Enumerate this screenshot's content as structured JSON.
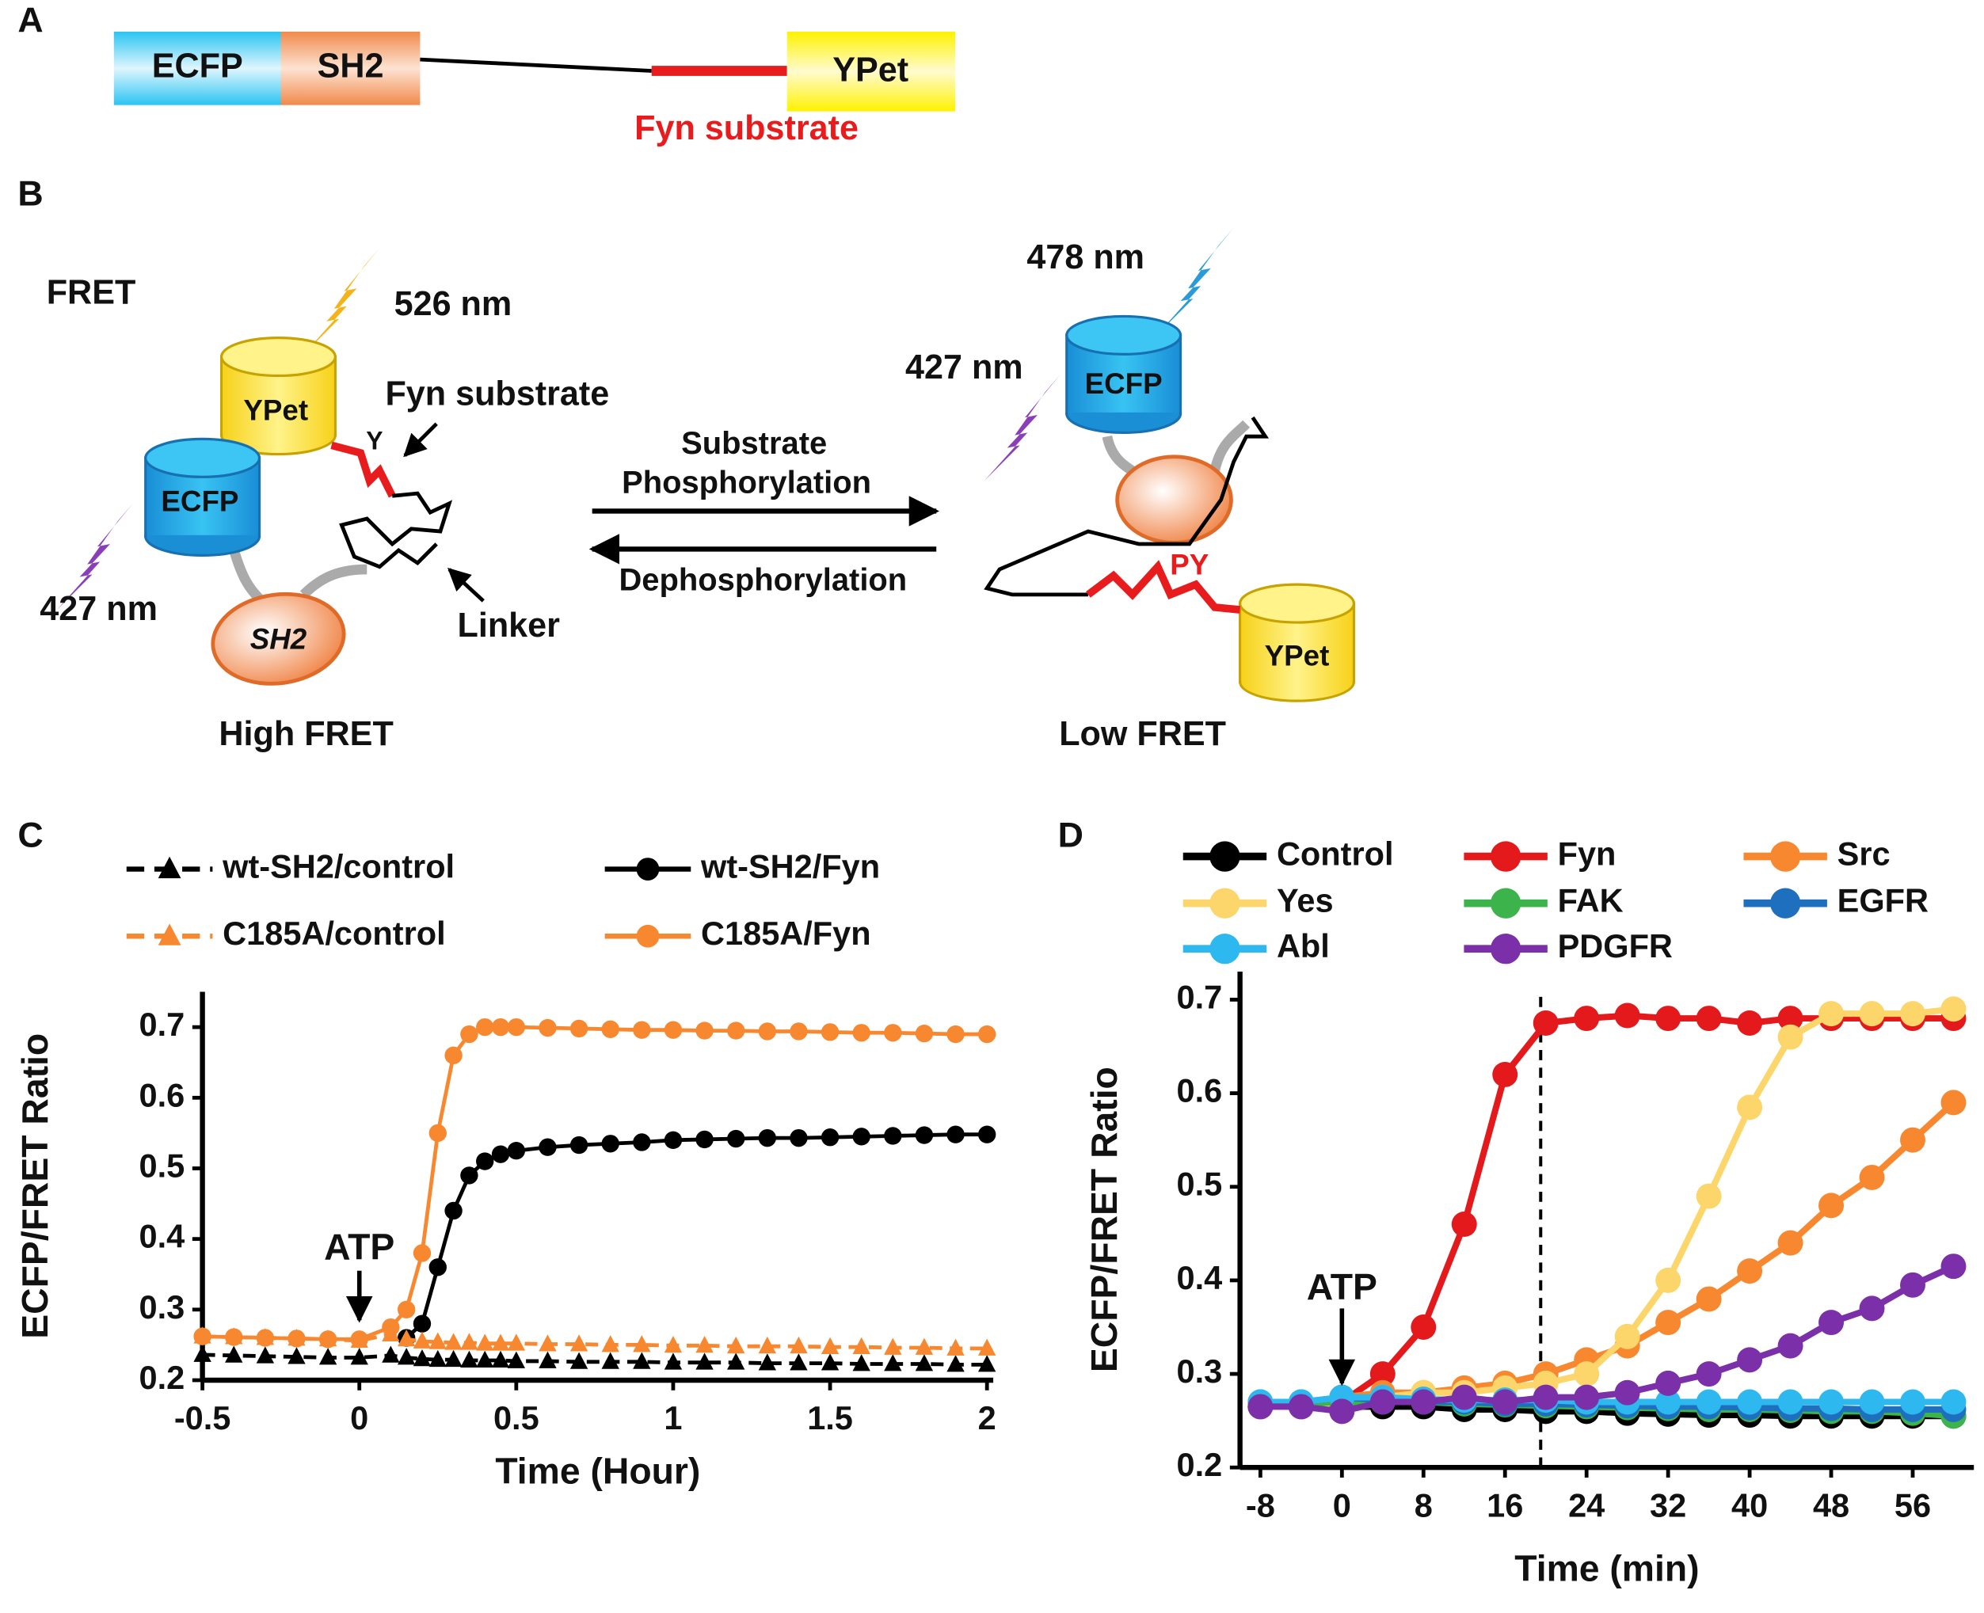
{
  "panel_a": {
    "panel_label": "A",
    "ecfp": "ECFP",
    "sh2": "SH2",
    "ypet": "YPet",
    "substrate": "Fyn substrate"
  },
  "panel_b": {
    "panel_label": "B",
    "high": {
      "fret": "FRET",
      "emission": "526 nm",
      "ypet": "YPet",
      "ecfp": "ECFP",
      "excitation": "427 nm",
      "sh2": "SH2",
      "substrate": "Fyn substrate",
      "tyrosine": "Y",
      "linker": "Linker",
      "state": "High FRET"
    },
    "arrows": {
      "forward_1": "Substrate",
      "forward_2": "Phosphorylation",
      "reverse": "Dephosphorylation"
    },
    "low": {
      "emission": "478 nm",
      "excitation": "427 nm",
      "ecfp": "ECFP",
      "phospho": "PY",
      "ypet": "YPet",
      "state": "Low FRET"
    }
  },
  "chart_data": [
    {
      "type": "line",
      "panel_label": "C",
      "x_label": "Time (Hour)",
      "y_label": "ECFP/FRET Ratio",
      "x": [
        -0.5,
        -0.4,
        -0.3,
        -0.2,
        -0.1,
        0,
        0.1,
        0.15,
        0.2,
        0.25,
        0.3,
        0.35,
        0.4,
        0.45,
        0.5,
        0.6,
        0.7,
        0.8,
        0.9,
        1,
        1.1,
        1.2,
        1.3,
        1.4,
        1.5,
        1.6,
        1.7,
        1.8,
        1.9,
        2
      ],
      "xlim": [
        -0.5,
        2.02
      ],
      "ylim": [
        0.2,
        0.75
      ],
      "xticks": [
        -0.5,
        0,
        0.5,
        1,
        1.5,
        2
      ],
      "yticks": [
        0.2,
        0.3,
        0.4,
        0.5,
        0.6,
        0.7
      ],
      "annotation": {
        "text": "ATP",
        "x": 0
      },
      "series": [
        {
          "name": "wt-SH2/control",
          "color": "#000000",
          "marker": "triangle",
          "dashed": true,
          "values": [
            0.236,
            0.235,
            0.234,
            0.233,
            0.232,
            0.232,
            0.235,
            0.232,
            0.23,
            0.229,
            0.229,
            0.228,
            0.228,
            0.228,
            0.227,
            0.227,
            0.226,
            0.226,
            0.226,
            0.225,
            0.225,
            0.225,
            0.224,
            0.224,
            0.224,
            0.223,
            0.223,
            0.223,
            0.222,
            0.222
          ]
        },
        {
          "name": "wt-SH2/Fyn",
          "color": "#000000",
          "marker": "circle",
          "dashed": false,
          "values": [
            null,
            null,
            null,
            null,
            null,
            null,
            null,
            0.26,
            0.28,
            0.36,
            0.44,
            0.49,
            0.51,
            0.52,
            0.525,
            0.53,
            0.533,
            0.535,
            0.537,
            0.54,
            0.541,
            0.542,
            0.543,
            0.543,
            0.544,
            0.545,
            0.546,
            0.547,
            0.548,
            0.548
          ]
        },
        {
          "name": "C185A/control",
          "color": "#f7882f",
          "marker": "triangle",
          "dashed": true,
          "values": [
            0.262,
            0.261,
            0.26,
            0.259,
            0.258,
            0.256,
            0.265,
            0.258,
            0.255,
            0.254,
            0.253,
            0.253,
            0.252,
            0.252,
            0.252,
            0.251,
            0.251,
            0.25,
            0.25,
            0.249,
            0.249,
            0.248,
            0.248,
            0.248,
            0.247,
            0.247,
            0.246,
            0.246,
            0.245,
            0.245
          ]
        },
        {
          "name": "C185A/Fyn",
          "color": "#f7882f",
          "marker": "circle",
          "dashed": false,
          "values": [
            0.262,
            0.261,
            0.26,
            0.259,
            0.258,
            0.258,
            0.275,
            0.3,
            0.38,
            0.55,
            0.66,
            0.69,
            0.7,
            0.7,
            0.7,
            0.699,
            0.698,
            0.697,
            0.696,
            0.696,
            0.695,
            0.695,
            0.694,
            0.694,
            0.693,
            0.692,
            0.692,
            0.691,
            0.69,
            0.69
          ]
        }
      ]
    },
    {
      "type": "line",
      "panel_label": "D",
      "x_label": "Time (min)",
      "y_label": "ECFP/FRET Ratio",
      "x": [
        -8,
        -4,
        0,
        4,
        8,
        12,
        16,
        20,
        24,
        28,
        32,
        36,
        40,
        44,
        48,
        52,
        56,
        60
      ],
      "xlim": [
        -10,
        62
      ],
      "ylim": [
        0.2,
        0.73
      ],
      "xticks": [
        -8,
        0,
        8,
        16,
        24,
        32,
        40,
        48,
        56
      ],
      "yticks": [
        0.2,
        0.3,
        0.4,
        0.5,
        0.6,
        0.7
      ],
      "annotation": {
        "text": "ATP",
        "x": 0
      },
      "vline": 19.5,
      "series": [
        {
          "name": "Control",
          "color": "#000000",
          "marker": "circle",
          "dashed": false,
          "values": [
            0.265,
            0.265,
            0.265,
            0.265,
            0.265,
            0.262,
            0.262,
            0.26,
            0.26,
            0.258,
            0.257,
            0.256,
            0.256,
            0.255,
            0.255,
            0.255,
            0.255,
            0.255
          ]
        },
        {
          "name": "Fyn",
          "color": "#e3191c",
          "marker": "circle",
          "dashed": false,
          "values": [
            0.265,
            0.265,
            0.27,
            0.3,
            0.35,
            0.46,
            0.62,
            0.675,
            0.68,
            0.683,
            0.68,
            0.68,
            0.675,
            0.68,
            0.68,
            0.68,
            0.68,
            0.68
          ]
        },
        {
          "name": "Src",
          "color": "#f7882f",
          "marker": "circle",
          "dashed": false,
          "values": [
            0.265,
            0.265,
            0.275,
            0.28,
            0.28,
            0.285,
            0.29,
            0.3,
            0.315,
            0.33,
            0.355,
            0.38,
            0.41,
            0.44,
            0.48,
            0.51,
            0.55,
            0.59
          ]
        },
        {
          "name": "Yes",
          "color": "#fcd66b",
          "marker": "circle",
          "dashed": false,
          "values": [
            0.265,
            0.265,
            0.27,
            0.275,
            0.28,
            0.28,
            0.285,
            0.29,
            0.3,
            0.34,
            0.4,
            0.49,
            0.585,
            0.66,
            0.685,
            0.685,
            0.685,
            0.69
          ]
        },
        {
          "name": "FAK",
          "color": "#3cb44b",
          "marker": "circle",
          "dashed": false,
          "values": [
            0.268,
            0.268,
            0.27,
            0.27,
            0.27,
            0.268,
            0.267,
            0.266,
            0.265,
            0.264,
            0.263,
            0.262,
            0.262,
            0.261,
            0.26,
            0.26,
            0.258,
            0.255
          ]
        },
        {
          "name": "EGFR",
          "color": "#1f6fbf",
          "marker": "circle",
          "dashed": false,
          "values": [
            0.27,
            0.27,
            0.275,
            0.272,
            0.27,
            0.27,
            0.268,
            0.268,
            0.267,
            0.266,
            0.265,
            0.265,
            0.264,
            0.263,
            0.263,
            0.262,
            0.262,
            0.262
          ]
        },
        {
          "name": "Abl",
          "color": "#2eb8f0",
          "marker": "circle",
          "dashed": false,
          "values": [
            0.27,
            0.27,
            0.275,
            0.275,
            0.273,
            0.272,
            0.272,
            0.272,
            0.27,
            0.27,
            0.27,
            0.27,
            0.27,
            0.27,
            0.27,
            0.27,
            0.27,
            0.27
          ]
        },
        {
          "name": "PDGFR",
          "color": "#7b2fa8",
          "marker": "circle",
          "dashed": false,
          "values": [
            0.265,
            0.265,
            0.26,
            0.27,
            0.27,
            0.275,
            0.27,
            0.275,
            0.275,
            0.28,
            0.29,
            0.3,
            0.315,
            0.33,
            0.355,
            0.37,
            0.395,
            0.415
          ]
        }
      ]
    }
  ]
}
